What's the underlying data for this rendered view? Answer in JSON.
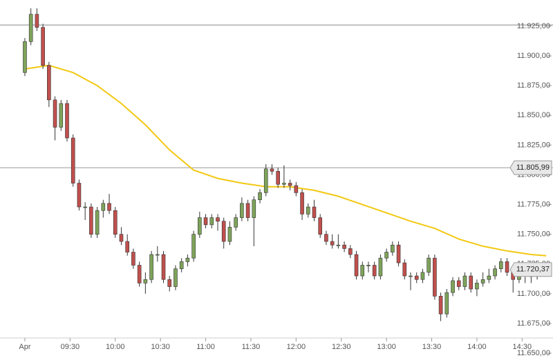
{
  "chart_data": {
    "type": "candlestick",
    "x": [
      540,
      544,
      548,
      552,
      556,
      560,
      564,
      568,
      572,
      576,
      580,
      584,
      588,
      592,
      596,
      600,
      604,
      608,
      612,
      616,
      620,
      624,
      628,
      632,
      636,
      640,
      644,
      648,
      652,
      656,
      660,
      664,
      668,
      672,
      676,
      680,
      684,
      688,
      692,
      696,
      700,
      704,
      708,
      712,
      716,
      720,
      724,
      728,
      732,
      736,
      740,
      744,
      748,
      752,
      756,
      760,
      764,
      768,
      772,
      776,
      780,
      784,
      788,
      792,
      796,
      800,
      804,
      808,
      812,
      816,
      820,
      824,
      828,
      832,
      836,
      840,
      844,
      848,
      852,
      856,
      860,
      864,
      868,
      872,
      876,
      880
    ],
    "open": [
      11886,
      11912,
      11935,
      11924,
      11892,
      11863,
      11840,
      11860,
      11831,
      11793,
      11773,
      11773,
      11750,
      11770,
      11776,
      11770,
      11750,
      11744,
      11735,
      11724,
      11709,
      11712,
      11733,
      11733,
      11712,
      11706,
      11721,
      11727,
      11730,
      11750,
      11764,
      11758,
      11764,
      11761,
      11744,
      11756,
      11764,
      11776,
      11764,
      11779,
      11785,
      11805,
      11803,
      11792,
      11793,
      11791,
      11785,
      11767,
      11773,
      11764,
      11750,
      11744,
      11741,
      11741,
      11738,
      11733,
      11715,
      11724,
      11724,
      11715,
      11730,
      11735,
      11741,
      11726,
      11715,
      11715,
      11712,
      11718,
      11730,
      11698,
      11683,
      11701,
      11711,
      11706,
      11715,
      11704,
      11709,
      11712,
      11715,
      11721,
      11727,
      11718,
      11712,
      11718,
      11715,
      11715
    ],
    "high": [
      11915,
      11940,
      11940,
      11927,
      11895,
      11866,
      11863,
      11863,
      11834,
      11796,
      11777,
      11776,
      11773,
      11779,
      11784,
      11773,
      11756,
      11750,
      11738,
      11727,
      11718,
      11736,
      11740,
      11736,
      11715,
      11724,
      11730,
      11733,
      11753,
      11769,
      11767,
      11767,
      11767,
      11764,
      11761,
      11767,
      11781,
      11779,
      11782,
      11788,
      11809,
      11809,
      11806,
      11808,
      11796,
      11794,
      11788,
      11776,
      11779,
      11767,
      11753,
      11750,
      11750,
      11744,
      11741,
      11736,
      11727,
      11727,
      11727,
      11733,
      11738,
      11744,
      11744,
      11729,
      11718,
      11718,
      11721,
      11733,
      11733,
      11701,
      11704,
      11714,
      11714,
      11718,
      11718,
      11712,
      11718,
      11721,
      11724,
      11730,
      11730,
      11721,
      11721,
      11721,
      11718,
      11723
    ],
    "low": [
      11883,
      11909,
      11921,
      11889,
      11857,
      11829,
      11837,
      11828,
      11790,
      11770,
      11762,
      11747,
      11747,
      11764,
      11767,
      11747,
      11741,
      11732,
      11721,
      11706,
      11700,
      11709,
      11727,
      11709,
      11702,
      11703,
      11718,
      11723,
      11727,
      11747,
      11755,
      11755,
      11753,
      11738,
      11741,
      11753,
      11761,
      11761,
      11740,
      11776,
      11782,
      11800,
      11789,
      11789,
      11787,
      11782,
      11762,
      11764,
      11761,
      11747,
      11741,
      11738,
      11738,
      11735,
      11730,
      11712,
      11712,
      11718,
      11712,
      11712,
      11727,
      11732,
      11723,
      11712,
      11703,
      11709,
      11709,
      11715,
      11695,
      11677,
      11680,
      11698,
      11703,
      11703,
      11701,
      11698,
      11706,
      11709,
      11712,
      11718,
      11715,
      11701,
      11709,
      11709,
      11709,
      11712
    ],
    "close": [
      11912,
      11935,
      11924,
      11892,
      11863,
      11840,
      11860,
      11831,
      11793,
      11773,
      11773,
      11750,
      11770,
      11776,
      11770,
      11750,
      11744,
      11735,
      11724,
      11709,
      11712,
      11733,
      11733,
      11712,
      11706,
      11721,
      11727,
      11730,
      11750,
      11764,
      11758,
      11764,
      11761,
      11744,
      11756,
      11764,
      11776,
      11764,
      11779,
      11785,
      11805,
      11803,
      11792,
      11793,
      11791,
      11785,
      11767,
      11773,
      11764,
      11750,
      11744,
      11741,
      11741,
      11738,
      11733,
      11715,
      11724,
      11724,
      11715,
      11730,
      11735,
      11741,
      11726,
      11715,
      11715,
      11712,
      11718,
      11730,
      11698,
      11683,
      11701,
      11711,
      11706,
      11715,
      11704,
      11709,
      11712,
      11715,
      11721,
      11727,
      11718,
      11712,
      11718,
      11715,
      11715,
      11720.37
    ],
    "up_color": "#7ea35a",
    "down_color": "#c0504d",
    "ma": {
      "color": "#f2c811",
      "x": [
        540,
        556,
        572,
        588,
        604,
        620,
        636,
        652,
        668,
        684,
        700,
        716,
        732,
        748,
        764,
        780,
        796,
        812,
        828,
        844,
        860,
        876,
        886
      ],
      "values": [
        11889,
        11892,
        11886,
        11875,
        11860,
        11842,
        11821,
        11804,
        11797,
        11793,
        11790,
        11790,
        11787,
        11782,
        11775,
        11768,
        11761,
        11755,
        11746,
        11740,
        11736,
        11733,
        11732
      ]
    },
    "hlines": [
      {
        "value": 11926
      },
      {
        "value": 11805.99,
        "label": "11.805,99"
      }
    ],
    "last_price": {
      "value": 11720.37,
      "label": "11.720,37"
    },
    "xlim": [
      523.5,
      890.5
    ],
    "ylim": [
      11646,
      11947
    ],
    "xticks": [
      {
        "value": 540,
        "label": "Apr"
      },
      {
        "value": 570,
        "label": "09:30"
      },
      {
        "value": 600,
        "label": "10:00"
      },
      {
        "value": 630,
        "label": "10:30"
      },
      {
        "value": 660,
        "label": "11:00"
      },
      {
        "value": 690,
        "label": "11:30"
      },
      {
        "value": 720,
        "label": "12:00"
      },
      {
        "value": 750,
        "label": "12:30"
      },
      {
        "value": 780,
        "label": "13:00"
      },
      {
        "value": 810,
        "label": "13:30"
      },
      {
        "value": 840,
        "label": "14:00"
      },
      {
        "value": 870,
        "label": "14:30"
      }
    ],
    "yticks": [
      {
        "value": 11650,
        "label": "11.650,00"
      },
      {
        "value": 11675,
        "label": "11.675,00"
      },
      {
        "value": 11700,
        "label": "11.700,00"
      },
      {
        "value": 11725,
        "label": "11.725,00"
      },
      {
        "value": 11750,
        "label": "11.750,00"
      },
      {
        "value": 11775,
        "label": "11.775,00"
      },
      {
        "value": 11800,
        "label": "11.800,00"
      },
      {
        "value": 11825,
        "label": "11.825,00"
      },
      {
        "value": 11850,
        "label": "11.850,00"
      },
      {
        "value": 11875,
        "label": "11.875,00"
      },
      {
        "value": 11900,
        "label": "11.900,00"
      },
      {
        "value": 11925,
        "label": "11.925,00"
      }
    ]
  }
}
